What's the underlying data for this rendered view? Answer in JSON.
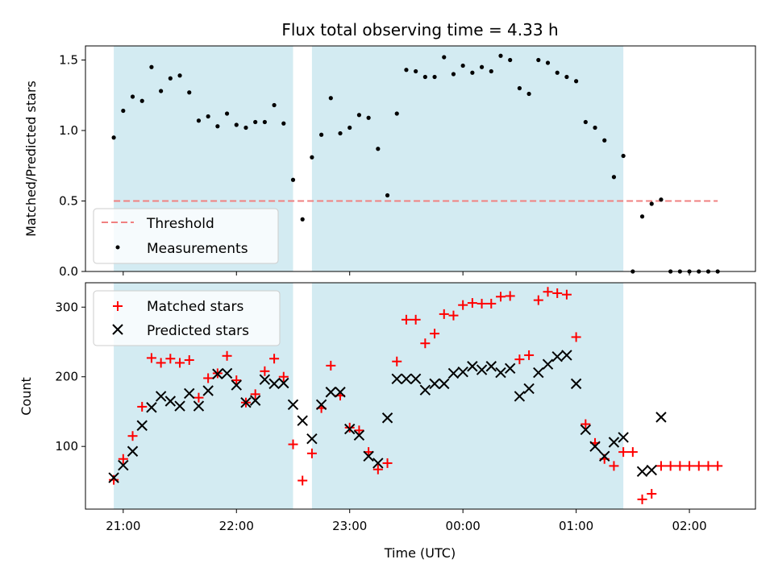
{
  "chart_data": [
    {
      "type": "scatter",
      "title": "Flux total observing time = 4.33 h",
      "ylabel": "Matched/Predicted stars",
      "ylim": [
        0,
        1.6
      ],
      "yticks": [
        0.0,
        0.5,
        1.0,
        1.5
      ],
      "ytick_labels": [
        "0.0",
        "0.5",
        "1.0",
        "1.5"
      ],
      "observing_windows": [
        [
          "20:55",
          "22:30"
        ],
        [
          "22:40",
          "01:25"
        ]
      ],
      "window_color": "#d3ebf2",
      "threshold": {
        "name": "Threshold",
        "value": 0.5,
        "x_range": [
          "20:55",
          "02:15"
        ],
        "color": "#f08080"
      },
      "legend": {
        "location": "lower-left",
        "entries": [
          "Threshold",
          "Measurements"
        ]
      },
      "series": [
        {
          "name": "Measurements",
          "color": "#000000",
          "marker": "dot",
          "x": [
            "20:55",
            "21:00",
            "21:05",
            "21:10",
            "21:15",
            "21:20",
            "21:25",
            "21:30",
            "21:35",
            "21:40",
            "21:45",
            "21:50",
            "21:55",
            "22:00",
            "22:05",
            "22:10",
            "22:15",
            "22:20",
            "22:25",
            "22:30",
            "22:35",
            "22:40",
            "22:45",
            "22:50",
            "22:55",
            "23:00",
            "23:05",
            "23:10",
            "23:15",
            "23:20",
            "23:25",
            "23:30",
            "23:35",
            "23:40",
            "23:45",
            "23:50",
            "23:55",
            "00:00",
            "00:05",
            "00:10",
            "00:15",
            "00:20",
            "00:25",
            "00:30",
            "00:35",
            "00:40",
            "00:45",
            "00:50",
            "00:55",
            "01:00",
            "01:05",
            "01:10",
            "01:15",
            "01:20",
            "01:25",
            "01:30",
            "01:35",
            "01:40",
            "01:45",
            "01:50",
            "01:55",
            "02:00",
            "02:05",
            "02:10",
            "02:15"
          ],
          "y": [
            0.95,
            1.14,
            1.24,
            1.21,
            1.45,
            1.28,
            1.37,
            1.39,
            1.27,
            1.07,
            1.1,
            1.03,
            1.12,
            1.04,
            1.02,
            1.06,
            1.06,
            1.18,
            1.05,
            0.65,
            0.37,
            0.81,
            0.97,
            1.23,
            0.98,
            1.02,
            1.11,
            1.09,
            0.87,
            0.54,
            1.12,
            1.43,
            1.42,
            1.38,
            1.38,
            1.52,
            1.4,
            1.46,
            1.41,
            1.45,
            1.42,
            1.53,
            1.5,
            1.3,
            1.26,
            1.5,
            1.48,
            1.41,
            1.38,
            1.35,
            1.06,
            1.02,
            0.93,
            0.67,
            0.82,
            0.0,
            0.39,
            0.48,
            0.51,
            0.0,
            0.0,
            0.0,
            0.0,
            0.0,
            0.0
          ]
        }
      ]
    },
    {
      "type": "scatter",
      "xlabel": "Time (UTC)",
      "ylabel": "Count",
      "ylim": [
        10,
        335
      ],
      "yticks": [
        100,
        200,
        300
      ],
      "ytick_labels": [
        "100",
        "200",
        "300"
      ],
      "xticks": [
        "21:00",
        "22:00",
        "23:00",
        "00:00",
        "01:00",
        "02:00"
      ],
      "observing_windows": [
        [
          "20:55",
          "22:30"
        ],
        [
          "22:40",
          "01:25"
        ]
      ],
      "window_color": "#d3ebf2",
      "legend": {
        "location": "upper-left",
        "entries": [
          "Matched stars",
          "Predicted stars"
        ]
      },
      "series": [
        {
          "name": "Matched stars",
          "color": "#ff0000",
          "marker": "plus",
          "x": [
            "20:55",
            "21:00",
            "21:05",
            "21:10",
            "21:15",
            "21:20",
            "21:25",
            "21:30",
            "21:35",
            "21:40",
            "21:45",
            "21:50",
            "21:55",
            "22:00",
            "22:05",
            "22:10",
            "22:15",
            "22:20",
            "22:25",
            "22:30",
            "22:35",
            "22:40",
            "22:45",
            "22:50",
            "22:55",
            "23:00",
            "23:05",
            "23:10",
            "23:15",
            "23:20",
            "23:25",
            "23:30",
            "23:35",
            "23:40",
            "23:45",
            "23:50",
            "23:55",
            "00:00",
            "00:05",
            "00:10",
            "00:15",
            "00:20",
            "00:25",
            "00:30",
            "00:35",
            "00:40",
            "00:45",
            "00:50",
            "00:55",
            "01:00",
            "01:05",
            "01:10",
            "01:15",
            "01:20",
            "01:25",
            "01:30",
            "01:35",
            "01:40",
            "01:45",
            "01:50",
            "01:55",
            "02:00",
            "02:05",
            "02:10",
            "02:15"
          ],
          "y": [
            52,
            82,
            115,
            157,
            227,
            220,
            226,
            220,
            224,
            170,
            198,
            205,
            230,
            195,
            163,
            175,
            208,
            226,
            200,
            103,
            51,
            90,
            155,
            216,
            173,
            127,
            123,
            92,
            67,
            76,
            222,
            282,
            282,
            248,
            262,
            290,
            288,
            303,
            306,
            305,
            305,
            315,
            316,
            225,
            231,
            310,
            322,
            320,
            318,
            257,
            132,
            105,
            82,
            72,
            92,
            92,
            24,
            32,
            72,
            72,
            72,
            72,
            72,
            72,
            72
          ]
        },
        {
          "name": "Predicted stars",
          "color": "#000000",
          "marker": "x",
          "x": [
            "20:55",
            "21:00",
            "21:05",
            "21:10",
            "21:15",
            "21:20",
            "21:25",
            "21:30",
            "21:35",
            "21:40",
            "21:45",
            "21:50",
            "21:55",
            "22:00",
            "22:05",
            "22:10",
            "22:15",
            "22:20",
            "22:25",
            "22:30",
            "22:35",
            "22:40",
            "22:45",
            "22:50",
            "22:55",
            "23:00",
            "23:05",
            "23:10",
            "23:15",
            "23:20",
            "23:25",
            "23:30",
            "23:35",
            "23:40",
            "23:45",
            "23:50",
            "23:55",
            "00:00",
            "00:05",
            "00:10",
            "00:15",
            "00:20",
            "00:25",
            "00:30",
            "00:35",
            "00:40",
            "00:45",
            "00:50",
            "00:55",
            "01:00",
            "01:05",
            "01:10",
            "01:15",
            "01:20",
            "01:25",
            "01:35",
            "01:40",
            "01:45"
          ],
          "y": [
            55,
            73,
            93,
            130,
            156,
            172,
            165,
            158,
            176,
            158,
            180,
            204,
            205,
            188,
            163,
            166,
            196,
            190,
            191,
            160,
            137,
            111,
            160,
            178,
            178,
            125,
            116,
            86,
            76,
            141,
            197,
            197,
            197,
            181,
            190,
            190,
            205,
            207,
            215,
            210,
            215,
            206,
            212,
            172,
            183,
            206,
            218,
            229,
            231,
            190,
            124,
            100,
            86,
            106,
            113,
            64,
            66,
            142
          ]
        }
      ]
    }
  ]
}
